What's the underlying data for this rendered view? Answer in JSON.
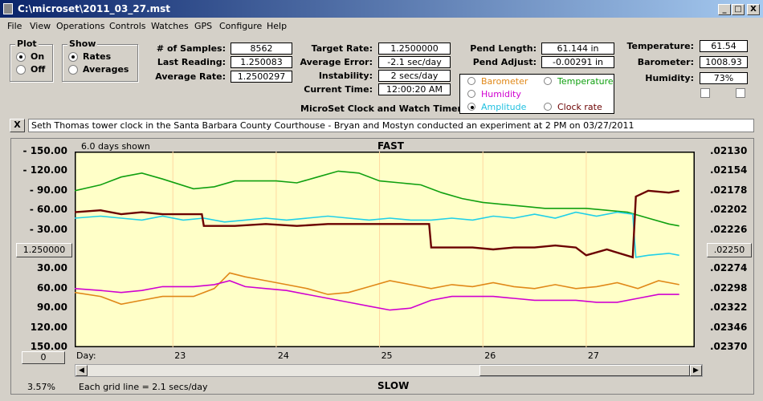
{
  "window": {
    "title": "C:\\microset\\2011_03_27.mst",
    "minimize": "_",
    "maximize": "□",
    "close": "X"
  },
  "menu": [
    "File",
    "View",
    "Operations",
    "Controls",
    "Watches",
    "GPS",
    "Configure",
    "Help"
  ],
  "plot_group": {
    "title": "Plot",
    "on": "On",
    "off": "Off",
    "selected": "On"
  },
  "show_group": {
    "title": "Show",
    "rates": "Rates",
    "averages": "Averages",
    "selected": "Rates"
  },
  "stats": {
    "samples_label": "# of Samples:",
    "samples": "8562",
    "last_label": "Last Reading:",
    "last": "1.250083",
    "avg_rate_label": "Average Rate:",
    "avg_rate": "1.2500297"
  },
  "rates": {
    "target_label": "Target Rate:",
    "target": "1.2500000",
    "avg_err_label": "Average Error:",
    "avg_err": "-2.1 sec/day",
    "instab_label": "Instability:",
    "instab": "2 secs/day",
    "time_label": "Current Time:",
    "time": "12:00:20 AM"
  },
  "app_name": "MicroSet Clock and Watch Timer",
  "pend": {
    "length_label": "Pend Length:",
    "length": "61.144 in",
    "adjust_label": "Pend Adjust:",
    "adjust": "-0.00291 in"
  },
  "sensor_options": {
    "barometer": "Barometer",
    "temperature": "Temperature",
    "humidity": "Humidity",
    "amplitude": "Amplitude",
    "clock_rate": "Clock rate",
    "selected": "Amplitude"
  },
  "env": {
    "temp_label": "Temperature:",
    "temp": "61.54",
    "baro_label": "Barometer:",
    "baro": "1008.93",
    "hum_label": "Humidity:",
    "hum": "73%"
  },
  "comment": {
    "close": "X",
    "text": "Seth Thomas tower clock in the Santa Barbara County Courthouse - Bryan and Mostyn conducted an experiment at 2 PM on 03/27/2011"
  },
  "chart_header": {
    "days_shown": "6.0 days shown",
    "fast": "FAST",
    "slow": "SLOW",
    "grid_note": "Each grid line = 2.1 secs/day",
    "percent": "3.57%",
    "left_button": "1.250000",
    "right_button": ".02250",
    "zero_button": "0"
  },
  "colors": {
    "barometer": "#e08818",
    "temperature": "#10a010",
    "humidity": "#d000d0",
    "amplitude": "#20d0e8",
    "clock_rate": "#6b0000",
    "plot_bg": "#ffffc8"
  },
  "chart_data": {
    "type": "line",
    "x_label": "Day:",
    "x_ticks": [
      "23",
      "24",
      "25",
      "26",
      "27"
    ],
    "left_ticks": [
      "- 150.00",
      "- 120.00",
      "- 90.00",
      "- 60.00",
      "- 30.00",
      "",
      "30.00",
      "60.00",
      "90.00",
      "120.00",
      "150.00"
    ],
    "right_ticks": [
      ".02130",
      ".02154",
      ".02178",
      ".02202",
      ".02226",
      "",
      ".02274",
      ".02298",
      ".02322",
      ".02346",
      ".02370"
    ],
    "xlim": [
      22.05,
      28.05
    ],
    "ylim": [
      150,
      -150
    ],
    "series": [
      {
        "name": "Barometer",
        "color": "#e08818",
        "x": [
          22.05,
          22.3,
          22.5,
          22.7,
          22.9,
          23.2,
          23.4,
          23.55,
          23.7,
          23.9,
          24.1,
          24.3,
          24.5,
          24.7,
          24.9,
          25.1,
          25.3,
          25.5,
          25.7,
          25.9,
          26.1,
          26.3,
          26.5,
          26.7,
          26.9,
          27.1,
          27.3,
          27.5,
          27.7,
          27.9
        ],
        "y": [
          -66,
          -72,
          -84,
          -78,
          -72,
          -72,
          -60,
          -36,
          -42,
          -48,
          -54,
          -60,
          -69,
          -66,
          -57,
          -48,
          -54,
          -60,
          -54,
          -57,
          -51,
          -57,
          -60,
          -54,
          -60,
          -57,
          -51,
          -60,
          -48,
          -54
        ]
      },
      {
        "name": "Humidity",
        "color": "#d000d0",
        "x": [
          22.05,
          22.3,
          22.5,
          22.7,
          22.9,
          23.2,
          23.4,
          23.55,
          23.7,
          23.9,
          24.1,
          24.3,
          24.5,
          24.7,
          24.9,
          25.1,
          25.3,
          25.5,
          25.7,
          25.9,
          26.1,
          26.3,
          26.5,
          26.7,
          26.9,
          27.1,
          27.3,
          27.5,
          27.7,
          27.9
        ],
        "y": [
          -60,
          -63,
          -66,
          -63,
          -57,
          -57,
          -54,
          -48,
          -57,
          -60,
          -63,
          -69,
          -75,
          -81,
          -87,
          -93,
          -90,
          -78,
          -72,
          -72,
          -72,
          -75,
          -78,
          -78,
          -78,
          -81,
          -81,
          -75,
          -69,
          -69
        ]
      },
      {
        "name": "Temperature",
        "color": "#10a010",
        "x": [
          22.05,
          22.3,
          22.5,
          22.7,
          22.9,
          23.2,
          23.4,
          23.6,
          23.8,
          24.0,
          24.2,
          24.4,
          24.6,
          24.8,
          25.0,
          25.2,
          25.4,
          25.6,
          25.8,
          26.0,
          26.2,
          26.4,
          26.6,
          26.8,
          27.0,
          27.2,
          27.4,
          27.6,
          27.8,
          27.9
        ],
        "y": [
          90,
          99,
          111,
          117,
          108,
          93,
          96,
          105,
          105,
          105,
          102,
          111,
          120,
          117,
          105,
          102,
          99,
          87,
          78,
          72,
          69,
          66,
          63,
          63,
          63,
          60,
          57,
          48,
          39,
          36
        ]
      },
      {
        "name": "Amplitude",
        "color": "#20d0e8",
        "x": [
          22.05,
          22.3,
          22.5,
          22.7,
          22.9,
          23.1,
          23.3,
          23.5,
          23.7,
          23.9,
          24.1,
          24.3,
          24.5,
          24.7,
          24.9,
          25.1,
          25.3,
          25.5,
          25.7,
          25.9,
          26.1,
          26.3,
          26.5,
          26.7,
          26.9,
          27.1,
          27.3,
          27.45,
          27.48,
          27.6,
          27.8,
          27.9
        ],
        "y": [
          48,
          51,
          48,
          45,
          51,
          45,
          48,
          42,
          45,
          48,
          45,
          48,
          51,
          48,
          45,
          48,
          45,
          45,
          48,
          45,
          51,
          48,
          54,
          48,
          57,
          51,
          57,
          54,
          -12,
          -9,
          -6,
          -9
        ]
      },
      {
        "name": "Clock rate",
        "color": "#6b0000",
        "x": [
          22.05,
          22.3,
          22.5,
          22.7,
          22.9,
          23.1,
          23.28,
          23.3,
          23.6,
          23.9,
          24.2,
          24.5,
          24.8,
          25.1,
          25.3,
          25.48,
          25.5,
          25.7,
          25.9,
          26.1,
          26.3,
          26.5,
          26.7,
          26.9,
          27.0,
          27.2,
          27.45,
          27.48,
          27.6,
          27.8,
          27.9
        ],
        "y": [
          57,
          60,
          54,
          57,
          54,
          54,
          54,
          36,
          36,
          39,
          36,
          39,
          39,
          39,
          39,
          39,
          3,
          3,
          3,
          0,
          3,
          3,
          6,
          3,
          -9,
          0,
          -12,
          81,
          90,
          87,
          90
        ]
      }
    ]
  }
}
